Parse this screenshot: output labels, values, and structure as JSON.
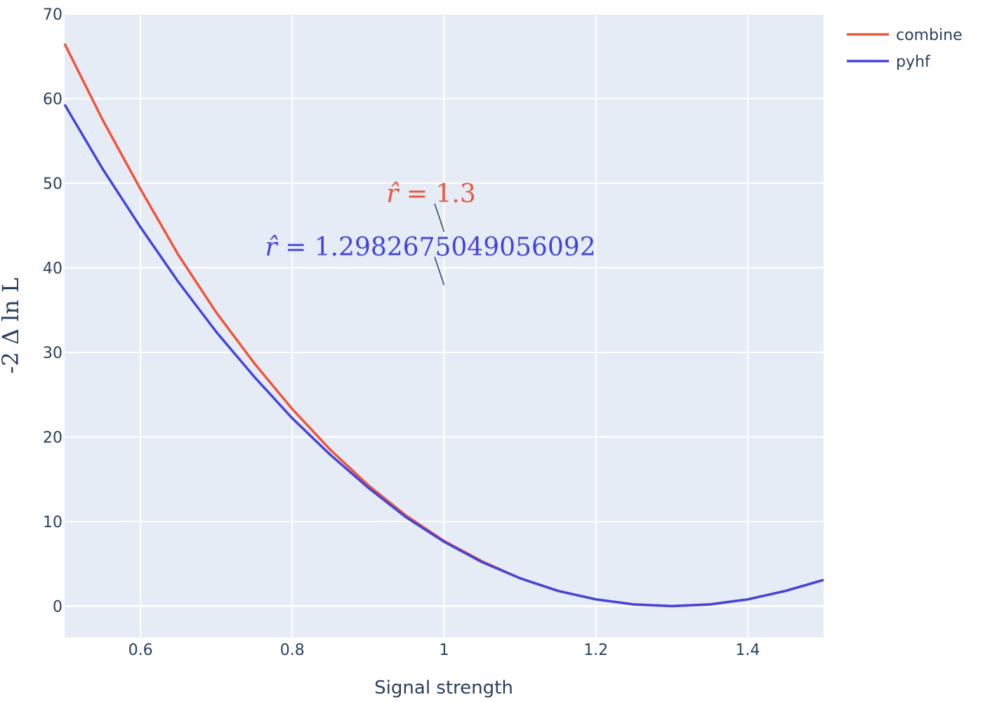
{
  "chart_data": {
    "type": "line",
    "title": "",
    "xlabel": "Signal strength",
    "ylabel": "-2 Δ ln L",
    "xlim": [
      0.5,
      1.5
    ],
    "ylim": [
      -3.7,
      70
    ],
    "x_ticks": [
      0.6,
      0.8,
      1,
      1.2,
      1.4
    ],
    "x_tick_labels": [
      "0.6",
      "0.8",
      "1",
      "1.2",
      "1.4"
    ],
    "y_ticks": [
      0,
      10,
      20,
      30,
      40,
      50,
      60,
      70
    ],
    "y_tick_labels": [
      "0",
      "10",
      "20",
      "30",
      "40",
      "50",
      "60",
      "70"
    ],
    "grid": true,
    "legend_position": "top-right",
    "background_color": "#e5ecf6",
    "series": [
      {
        "name": "combine",
        "color": "#ef553b",
        "x": [
          0.5,
          0.55,
          0.6,
          0.65,
          0.7,
          0.75,
          0.8,
          0.85,
          0.9,
          0.95,
          1.0,
          1.05,
          1.1,
          1.15,
          1.2,
          1.25,
          1.3,
          1.35,
          1.4,
          1.45,
          1.5
        ],
        "y": [
          66.5,
          57.5,
          49.3,
          41.5,
          34.7,
          28.7,
          23.3,
          18.5,
          14.3,
          10.7,
          7.7,
          5.3,
          3.3,
          1.8,
          0.8,
          0.2,
          0.0,
          0.2,
          0.8,
          1.8,
          3.1
        ]
      },
      {
        "name": "pyhf",
        "color": "#4444dd",
        "x": [
          0.5,
          0.55,
          0.6,
          0.65,
          0.7,
          0.75,
          0.8,
          0.85,
          0.9,
          0.95,
          1.0,
          1.05,
          1.1,
          1.15,
          1.2,
          1.25,
          1.3,
          1.35,
          1.4,
          1.45,
          1.5
        ],
        "y": [
          59.3,
          51.7,
          44.8,
          38.3,
          32.4,
          27.1,
          22.2,
          17.9,
          14.0,
          10.5,
          7.6,
          5.2,
          3.3,
          1.8,
          0.8,
          0.2,
          0.0,
          0.2,
          0.8,
          1.8,
          3.1
        ]
      }
    ],
    "annotations": [
      {
        "prefix": "r̂ ",
        "text": "= 1.3",
        "color": "#ef553b",
        "x": 1.0,
        "y": 44
      },
      {
        "prefix": "r̂ ",
        "text": "= 1.2982675049056092",
        "color": "#4444dd",
        "x": 1.0,
        "y": 38
      }
    ]
  }
}
